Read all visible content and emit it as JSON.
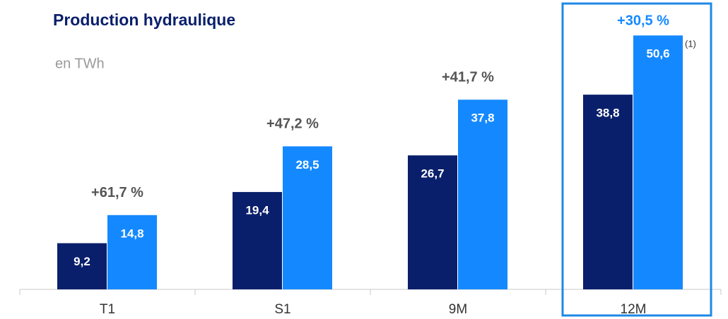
{
  "chart_data": {
    "type": "bar",
    "title": "Production hydraulique",
    "subtitle": "en TWh",
    "categories": [
      "T1",
      "S1",
      "9M",
      "12M"
    ],
    "series": [
      {
        "color": "#0a1f6b",
        "values": [
          9.2,
          19.4,
          26.7,
          38.8
        ],
        "value_labels": [
          "9,2",
          "19,4",
          "26,7",
          "38,8"
        ]
      },
      {
        "color": "#1489ff",
        "values": [
          14.8,
          28.5,
          37.8,
          50.6
        ],
        "value_labels": [
          "14,8",
          "28,5",
          "37,8",
          "50,6"
        ]
      }
    ],
    "annotations": [
      {
        "text": "+61,7 %",
        "color": "#555555"
      },
      {
        "text": "+47,2 %",
        "color": "#555555"
      },
      {
        "text": "+41,7 %",
        "color": "#555555"
      },
      {
        "text": "+30,5 %",
        "color": "#1489ff"
      }
    ],
    "footnote": "(1)",
    "highlight": "12M"
  }
}
